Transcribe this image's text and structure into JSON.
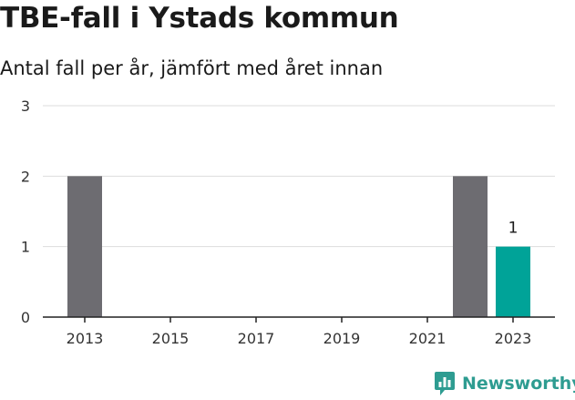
{
  "header": {
    "title": "TBE-fall i Ystads kommun",
    "subtitle": "Antal fall per år, jämfört med året innan"
  },
  "brand": {
    "name": "Newsworthy",
    "icon": "newsworthy-logo-icon",
    "color": "#2e9c91"
  },
  "colors": {
    "bar": "#6d6c71",
    "highlight": "#00a398",
    "grid": "#dddddd",
    "axis": "#222222"
  },
  "chart_data": {
    "type": "bar",
    "title": "TBE-fall i Ystads kommun",
    "subtitle": "Antal fall per år, jämfört med året innan",
    "x": [
      2013,
      2014,
      2015,
      2016,
      2017,
      2018,
      2019,
      2020,
      2021,
      2022,
      2023
    ],
    "values": [
      2,
      0,
      0,
      0,
      0,
      0,
      0,
      0,
      0,
      2,
      1
    ],
    "highlight": 2023,
    "x_tick_labels": [
      "2013",
      "2015",
      "2017",
      "2019",
      "2021",
      "2023"
    ],
    "y_ticks": [
      0,
      1,
      2,
      3
    ],
    "ylim": [
      0,
      3
    ],
    "data_labels": [
      {
        "x": 2023,
        "text": "1"
      }
    ],
    "xlabel": "",
    "ylabel": "",
    "grid": true,
    "legend": "none"
  }
}
